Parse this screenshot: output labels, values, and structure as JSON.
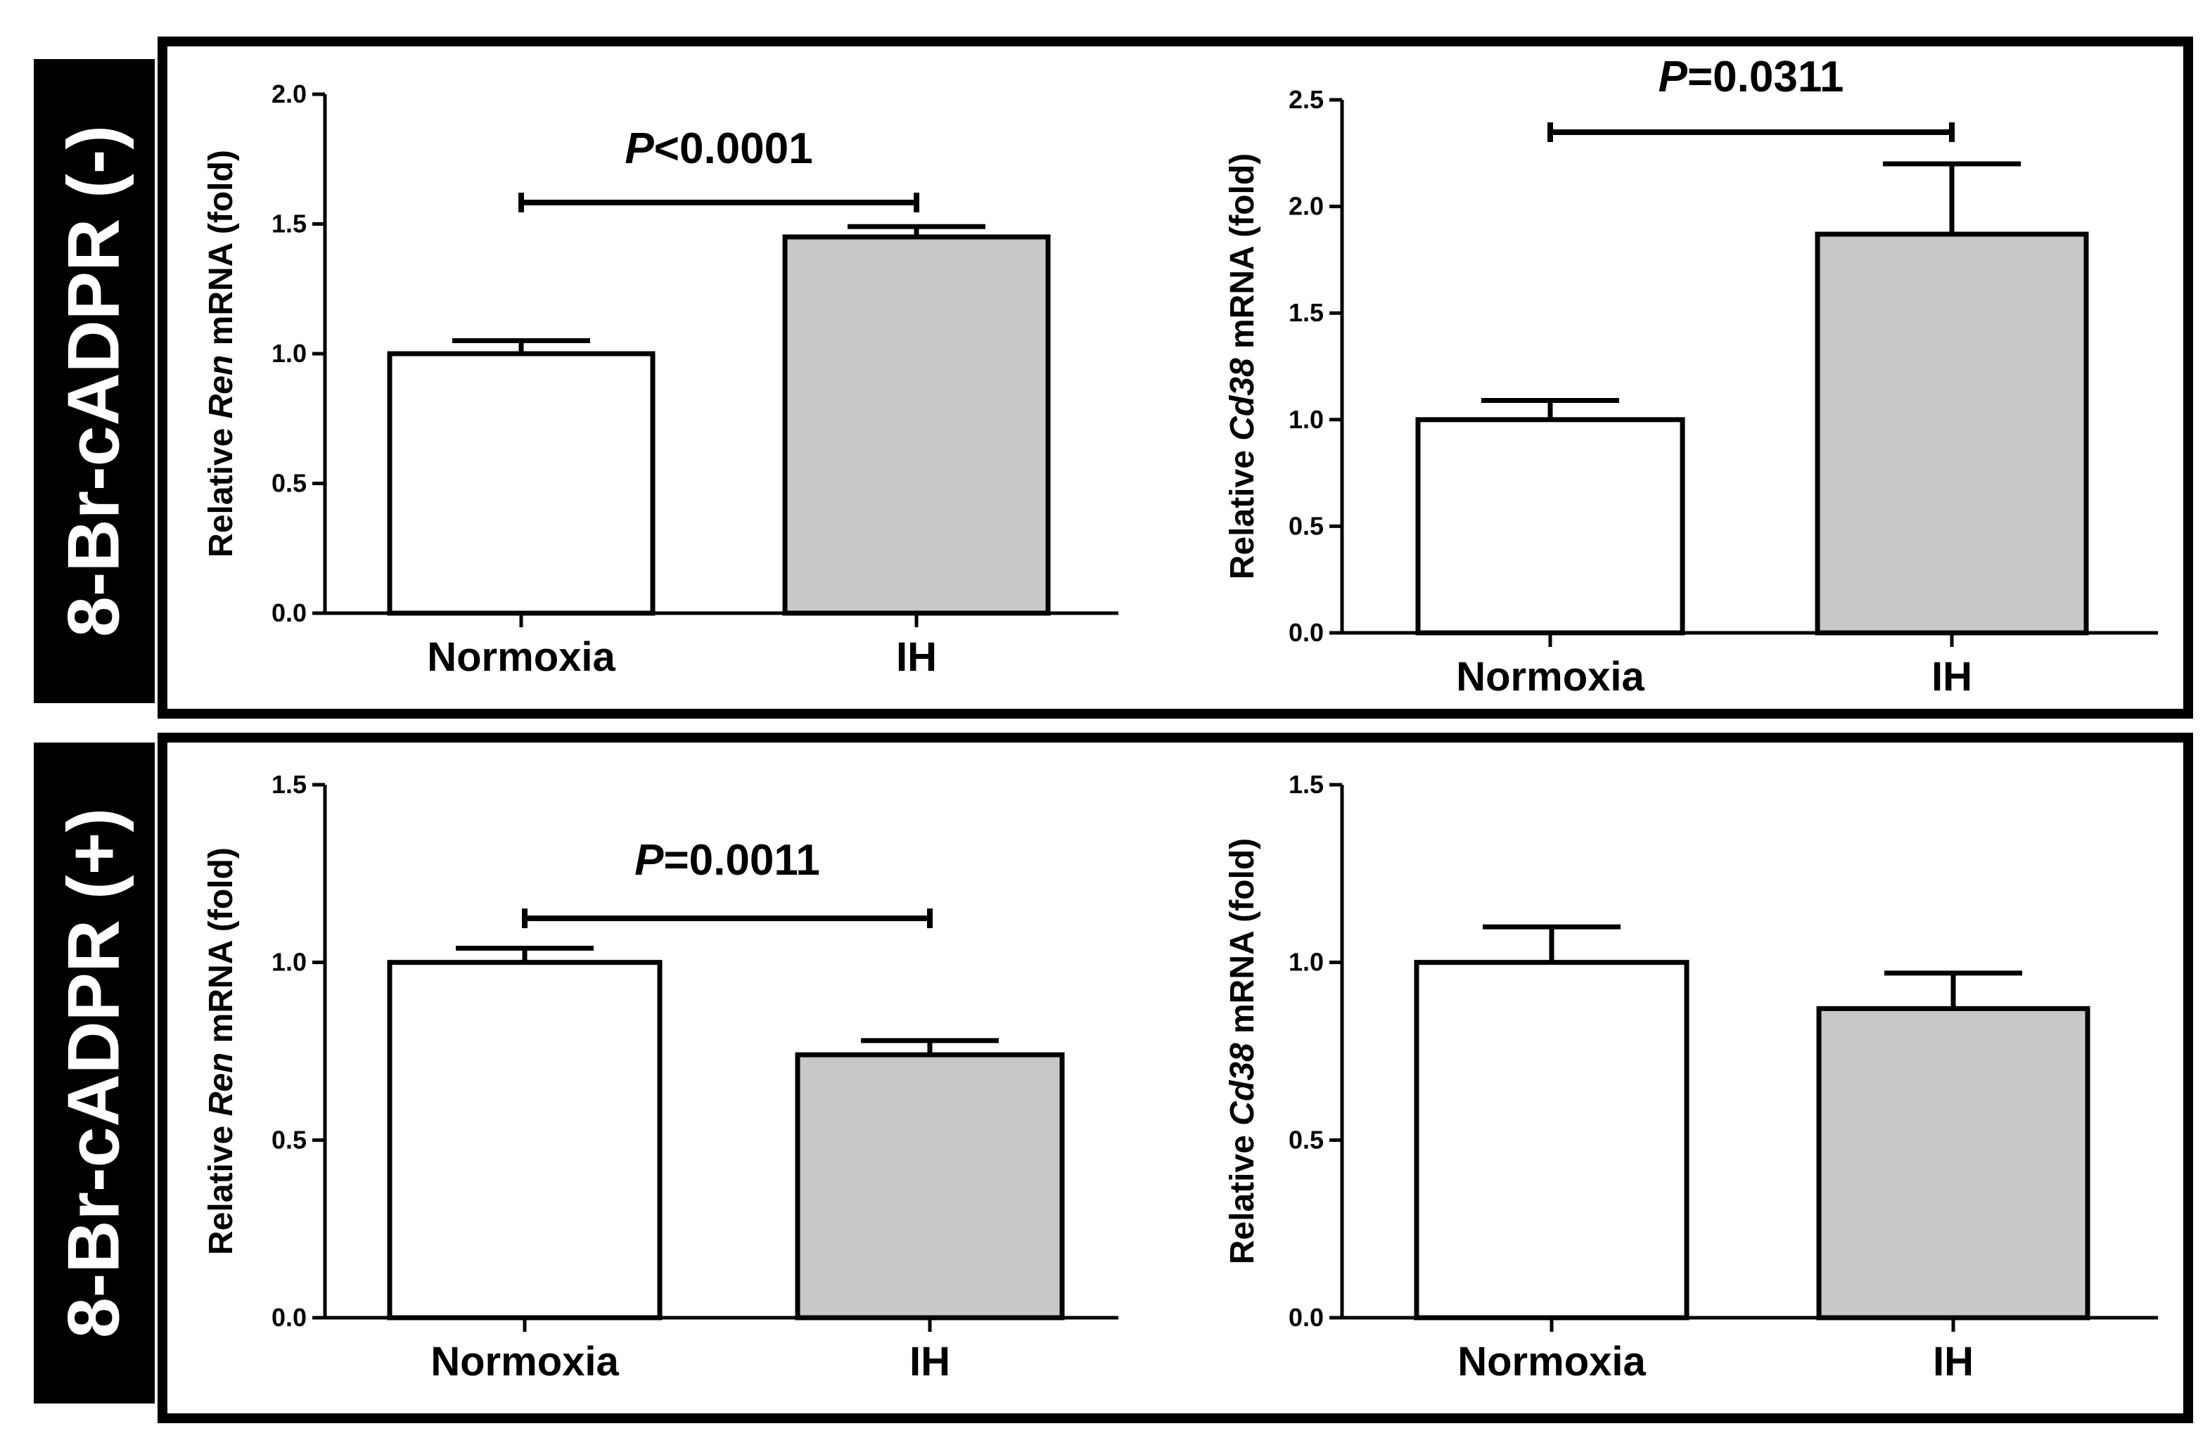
{
  "groups": [
    {
      "label": "8-Br-cADPR (-)"
    },
    {
      "label": "8-Br-cADPR (+)"
    }
  ],
  "colors": {
    "normoxia_bar": "#ffffff",
    "ih_bar": "#c8c8c8",
    "axis": "#000000"
  },
  "chart_data": [
    {
      "type": "bar",
      "group": "8-Br-cADPR (-)",
      "categories": [
        "Normoxia",
        "IH"
      ],
      "values": [
        1.0,
        1.45
      ],
      "errors": [
        0.05,
        0.04
      ],
      "ylabel": {
        "prefix": "Relative ",
        "gene": "Ren",
        "suffix": " mRNA (fold)"
      },
      "ylim": [
        0,
        2.0
      ],
      "yticks": [
        0.0,
        0.5,
        1.0,
        1.5,
        2.0
      ],
      "tick_labels": [
        "0.0",
        "0.5",
        "1.0",
        "1.5",
        "2.0"
      ],
      "significance": {
        "italic": "P",
        "rest": "<0.0001",
        "level": 1.6
      }
    },
    {
      "type": "bar",
      "group": "8-Br-cADPR (-)",
      "categories": [
        "Normoxia",
        "IH"
      ],
      "values": [
        1.0,
        1.87
      ],
      "errors": [
        0.09,
        0.33
      ],
      "ylabel": {
        "prefix": "Relative ",
        "gene": "Cd38",
        "suffix": " mRNA (fold)"
      },
      "ylim": [
        0,
        2.5
      ],
      "yticks": [
        0.0,
        0.5,
        1.0,
        1.5,
        2.0,
        2.5
      ],
      "tick_labels": [
        "0.0",
        "0.5",
        "1.0",
        "1.5",
        "2.0",
        "2.5"
      ],
      "significance": {
        "italic": "P",
        "rest": "=0.0311",
        "level": 2.35
      }
    },
    {
      "type": "bar",
      "group": "8-Br-cADPR (+)",
      "categories": [
        "Normoxia",
        "IH"
      ],
      "values": [
        1.0,
        0.74
      ],
      "errors": [
        0.04,
        0.04
      ],
      "ylabel": {
        "prefix": "Relative ",
        "gene": "Ren",
        "suffix": " mRNA (fold)"
      },
      "ylim": [
        0,
        1.5
      ],
      "yticks": [
        0.0,
        0.5,
        1.0,
        1.5
      ],
      "tick_labels": [
        "0.0",
        "0.5",
        "1.0",
        "1.5"
      ],
      "significance": {
        "italic": "P",
        "rest": "=0.0011",
        "level": 1.12
      }
    },
    {
      "type": "bar",
      "group": "8-Br-cADPR (+)",
      "categories": [
        "Normoxia",
        "IH"
      ],
      "values": [
        1.0,
        0.87
      ],
      "errors": [
        0.1,
        0.1
      ],
      "ylabel": {
        "prefix": "Relative ",
        "gene": "Cd38",
        "suffix": " mRNA (fold)"
      },
      "ylim": [
        0,
        1.5
      ],
      "yticks": [
        0.0,
        0.5,
        1.0,
        1.5
      ],
      "tick_labels": [
        "0.0",
        "0.5",
        "1.0",
        "1.5"
      ],
      "significance": null
    }
  ]
}
